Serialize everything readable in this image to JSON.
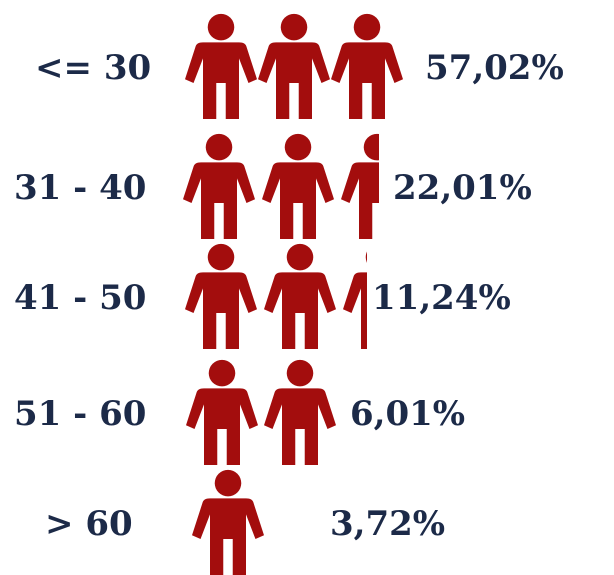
{
  "chart_data": {
    "type": "pictograph",
    "categories": [
      "<= 30",
      "31 - 40",
      "41 - 50",
      "51 - 60",
      "> 60"
    ],
    "values": [
      57.02,
      22.01,
      11.24,
      6.01,
      3.72
    ],
    "value_labels": [
      "57,02%",
      "22,01%",
      "11,24%",
      "6,01%",
      "3,72%"
    ],
    "color": "#a30d0d"
  }
}
